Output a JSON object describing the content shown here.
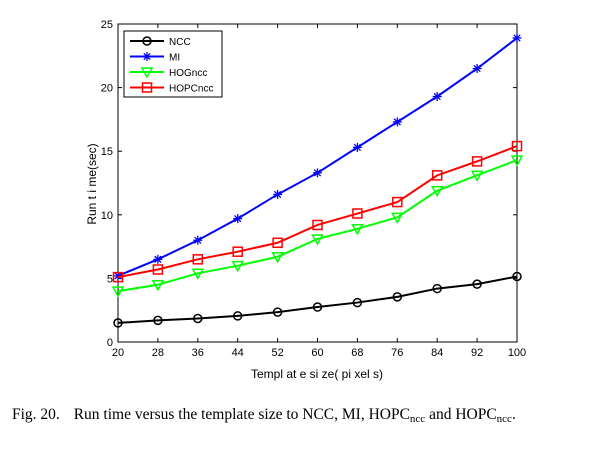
{
  "chart_data": {
    "type": "line",
    "x": [
      20,
      28,
      36,
      44,
      52,
      60,
      68,
      76,
      84,
      92,
      100
    ],
    "xticks": [
      "20",
      "28",
      "36",
      "44",
      "52",
      "60",
      "68",
      "76",
      "84",
      "92",
      "100"
    ],
    "yticks": [
      "0",
      "5",
      "10",
      "15",
      "20",
      "25"
    ],
    "xlim": [
      20,
      100
    ],
    "ylim": [
      0,
      25
    ],
    "xlabel": "Templ at e  si ze( pi xel s)",
    "ylabel": "Run  t i me(sec)",
    "grid": false,
    "legend_position": "top-left",
    "series": [
      {
        "name": "NCC",
        "color": "#000000",
        "marker": "circle",
        "values": [
          1.5,
          1.7,
          1.85,
          2.05,
          2.35,
          2.75,
          3.1,
          3.55,
          4.2,
          4.55,
          5.15
        ]
      },
      {
        "name": "MI",
        "color": "#0000ff",
        "marker": "star",
        "values": [
          5.2,
          6.5,
          8.0,
          9.7,
          11.6,
          13.3,
          15.3,
          17.3,
          19.3,
          21.5,
          23.9
        ]
      },
      {
        "name": "HOGncc",
        "color": "#00ff00",
        "marker": "triangle-down",
        "values": [
          4.0,
          4.5,
          5.4,
          6.0,
          6.7,
          8.1,
          8.9,
          9.8,
          11.9,
          13.1,
          14.3
        ]
      },
      {
        "name": "HOPCncc",
        "color": "#ff0000",
        "marker": "square",
        "values": [
          5.1,
          5.7,
          6.5,
          7.1,
          7.8,
          9.2,
          10.1,
          11.0,
          13.1,
          14.2,
          15.4
        ]
      }
    ]
  },
  "caption": {
    "label": "Fig. 20.",
    "text_1": "Run time versus the template size to NCC, MI, HOPC",
    "sub_1": "ncc",
    "text_2": " and HOPC",
    "sub_2": "ncc",
    "text_3": "."
  }
}
